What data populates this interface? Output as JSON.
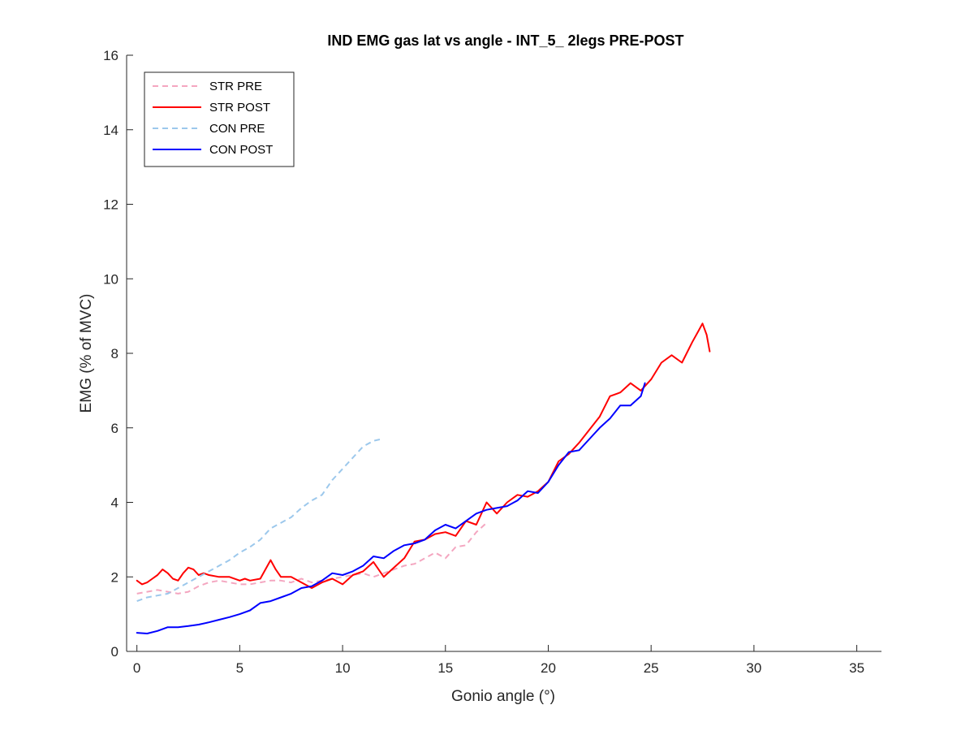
{
  "chart_data": {
    "type": "line",
    "title": "IND EMG gas lat vs angle - INT_5_ 2legs PRE-POST",
    "xlabel": "Gonio angle (°)",
    "ylabel": "EMG (% of MVC)",
    "xlim": [
      -0.5,
      36.2
    ],
    "ylim": [
      0,
      16
    ],
    "xticks": [
      0,
      5,
      10,
      15,
      20,
      25,
      30,
      35
    ],
    "xtick_labels": [
      "0",
      "5",
      "10",
      "15",
      "20",
      "25",
      "30",
      "35"
    ],
    "yticks": [
      0,
      2,
      4,
      6,
      8,
      10,
      12,
      14,
      16
    ],
    "ytick_labels": [
      "0",
      "2",
      "4",
      "6",
      "8",
      "10",
      "12",
      "14",
      "16"
    ],
    "grid": false,
    "legend_position": "top-left",
    "series": [
      {
        "name": "STR PRE",
        "color": "#f4a6c0",
        "dash": "dashed",
        "x": [
          0,
          0.5,
          1,
          1.5,
          2,
          2.5,
          3,
          3.5,
          4,
          4.5,
          5,
          5.5,
          6,
          6.5,
          7,
          7.5,
          8,
          8.5,
          9,
          9.5,
          10,
          10.5,
          11,
          11.5,
          12,
          12.5,
          13,
          13.5,
          14,
          14.5,
          15,
          15.5,
          16,
          16.5,
          17
        ],
        "y": [
          1.55,
          1.6,
          1.65,
          1.6,
          1.55,
          1.6,
          1.75,
          1.85,
          1.9,
          1.85,
          1.8,
          1.8,
          1.85,
          1.9,
          1.9,
          1.85,
          1.95,
          1.85,
          1.9,
          1.95,
          2.0,
          2.05,
          2.1,
          2.0,
          2.1,
          2.2,
          2.3,
          2.35,
          2.5,
          2.65,
          2.5,
          2.8,
          2.85,
          3.2,
          3.45
        ]
      },
      {
        "name": "STR POST",
        "color": "#ff0000",
        "dash": "solid",
        "x": [
          0,
          0.25,
          0.5,
          0.75,
          1,
          1.25,
          1.5,
          1.75,
          2,
          2.25,
          2.5,
          2.75,
          3,
          3.25,
          3.5,
          4,
          4.5,
          5,
          5.25,
          5.5,
          6,
          6.25,
          6.5,
          6.75,
          7,
          7.5,
          8,
          8.5,
          9,
          9.5,
          10,
          10.5,
          11,
          11.5,
          12,
          12.5,
          13,
          13.5,
          14,
          14.5,
          15,
          15.5,
          16,
          16.5,
          17,
          17.5,
          18,
          18.5,
          19,
          19.5,
          20,
          20.5,
          21,
          21.5,
          22,
          22.5,
          23,
          23.5,
          24,
          24.5,
          25,
          25.5,
          26,
          26.5,
          27,
          27.3,
          27.5,
          27.7,
          27.85
        ],
        "y": [
          1.9,
          1.8,
          1.85,
          1.95,
          2.05,
          2.2,
          2.1,
          1.95,
          1.9,
          2.1,
          2.25,
          2.2,
          2.05,
          2.1,
          2.05,
          2.0,
          2.0,
          1.9,
          1.95,
          1.9,
          1.95,
          2.2,
          2.45,
          2.2,
          2.0,
          2.0,
          1.85,
          1.7,
          1.85,
          1.95,
          1.8,
          2.05,
          2.15,
          2.4,
          2.0,
          2.25,
          2.5,
          2.95,
          3.0,
          3.15,
          3.2,
          3.1,
          3.5,
          3.4,
          4.0,
          3.7,
          4.0,
          4.2,
          4.15,
          4.3,
          4.55,
          5.1,
          5.3,
          5.6,
          5.95,
          6.3,
          6.85,
          6.95,
          7.2,
          7.0,
          7.3,
          7.75,
          7.95,
          7.75,
          8.3,
          8.6,
          8.8,
          8.5,
          8.05
        ]
      },
      {
        "name": "CON PRE",
        "color": "#9cc8ec",
        "dash": "dashed",
        "x": [
          0,
          0.5,
          1,
          1.5,
          2,
          2.5,
          3,
          3.5,
          4,
          4.5,
          5,
          5.5,
          6,
          6.5,
          7,
          7.5,
          8,
          8.5,
          9,
          9.5,
          10,
          10.5,
          11,
          11.5,
          11.9
        ],
        "y": [
          1.35,
          1.45,
          1.5,
          1.55,
          1.7,
          1.85,
          2.0,
          2.15,
          2.3,
          2.45,
          2.65,
          2.8,
          3.0,
          3.3,
          3.45,
          3.6,
          3.85,
          4.05,
          4.2,
          4.6,
          4.9,
          5.2,
          5.5,
          5.65,
          5.7
        ]
      },
      {
        "name": "CON POST",
        "color": "#0000ff",
        "dash": "solid",
        "x": [
          0,
          0.5,
          1,
          1.5,
          2,
          2.5,
          3,
          3.5,
          4,
          4.5,
          5,
          5.5,
          6,
          6.5,
          7,
          7.5,
          8,
          8.5,
          9,
          9.5,
          10,
          10.5,
          11,
          11.5,
          12,
          12.5,
          13,
          13.5,
          14,
          14.5,
          15,
          15.5,
          16,
          16.5,
          17,
          17.5,
          18,
          18.5,
          19,
          19.5,
          20,
          20.5,
          21,
          21.5,
          22,
          22.5,
          23,
          23.5,
          24,
          24.5,
          24.7
        ],
        "y": [
          0.5,
          0.48,
          0.55,
          0.65,
          0.65,
          0.68,
          0.72,
          0.78,
          0.85,
          0.92,
          1.0,
          1.1,
          1.3,
          1.35,
          1.45,
          1.55,
          1.7,
          1.75,
          1.9,
          2.1,
          2.05,
          2.15,
          2.3,
          2.55,
          2.5,
          2.7,
          2.85,
          2.9,
          3.0,
          3.25,
          3.4,
          3.3,
          3.5,
          3.7,
          3.8,
          3.85,
          3.9,
          4.05,
          4.3,
          4.25,
          4.55,
          5.0,
          5.35,
          5.4,
          5.7,
          6.0,
          6.25,
          6.6,
          6.6,
          6.85,
          7.2
        ]
      }
    ]
  }
}
